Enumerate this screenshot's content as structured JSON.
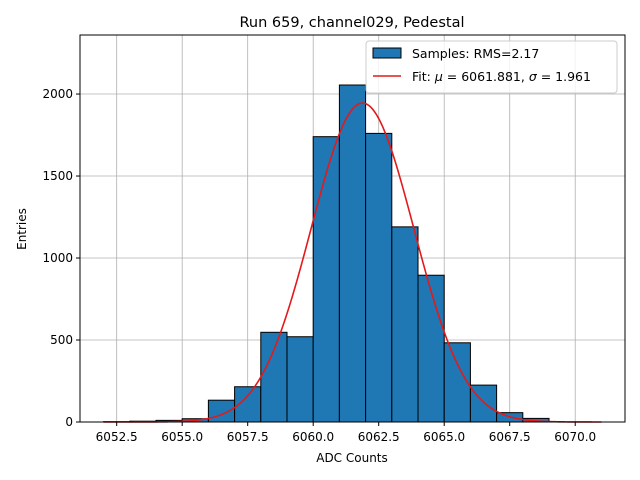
{
  "chart_data": {
    "type": "bar",
    "title": "Run 659, channel029, Pedestal",
    "xlabel": "ADC Counts",
    "ylabel": "Entries",
    "xlim": [
      6051.1,
      6071.9
    ],
    "ylim": [
      0,
      2360
    ],
    "x_ticks": [
      6052.5,
      6055.0,
      6057.5,
      6060.0,
      6062.5,
      6065.0,
      6067.5,
      6070.0
    ],
    "x_tick_labels": [
      "6052.5",
      "6055.0",
      "6057.5",
      "6060.0",
      "6062.5",
      "6065.0",
      "6067.5",
      "6070.0"
    ],
    "y_ticks": [
      0,
      500,
      1000,
      1500,
      2000
    ],
    "y_tick_labels": [
      "0",
      "500",
      "1000",
      "1500",
      "2000"
    ],
    "grid": true,
    "legend_position": "top-right",
    "bin_width": 1,
    "histogram": {
      "name": "Samples: RMS=2.17",
      "color": "#1f77b4",
      "edge_color": "#000000",
      "bins": [
        {
          "left": 6052,
          "count": 2
        },
        {
          "left": 6053,
          "count": 5
        },
        {
          "left": 6054,
          "count": 10
        },
        {
          "left": 6055,
          "count": 20
        },
        {
          "left": 6056,
          "count": 133
        },
        {
          "left": 6057,
          "count": 215
        },
        {
          "left": 6058,
          "count": 547
        },
        {
          "left": 6059,
          "count": 520
        },
        {
          "left": 6060,
          "count": 1740
        },
        {
          "left": 6061,
          "count": 2055
        },
        {
          "left": 6062,
          "count": 1760
        },
        {
          "left": 6063,
          "count": 1190
        },
        {
          "left": 6064,
          "count": 895
        },
        {
          "left": 6065,
          "count": 483
        },
        {
          "left": 6066,
          "count": 225
        },
        {
          "left": 6067,
          "count": 57
        },
        {
          "left": 6068,
          "count": 22
        }
      ]
    },
    "fit": {
      "name_prefix": "Fit: ",
      "mu_symbol": "μ",
      "mu_text": " = 6061.881, ",
      "sigma_symbol": "σ",
      "sigma_text": " = 1.961",
      "mu": 6061.881,
      "sigma": 1.961,
      "amplitude": 1945,
      "x_range": [
        6052,
        6071
      ],
      "color": "#e31a1c"
    }
  }
}
